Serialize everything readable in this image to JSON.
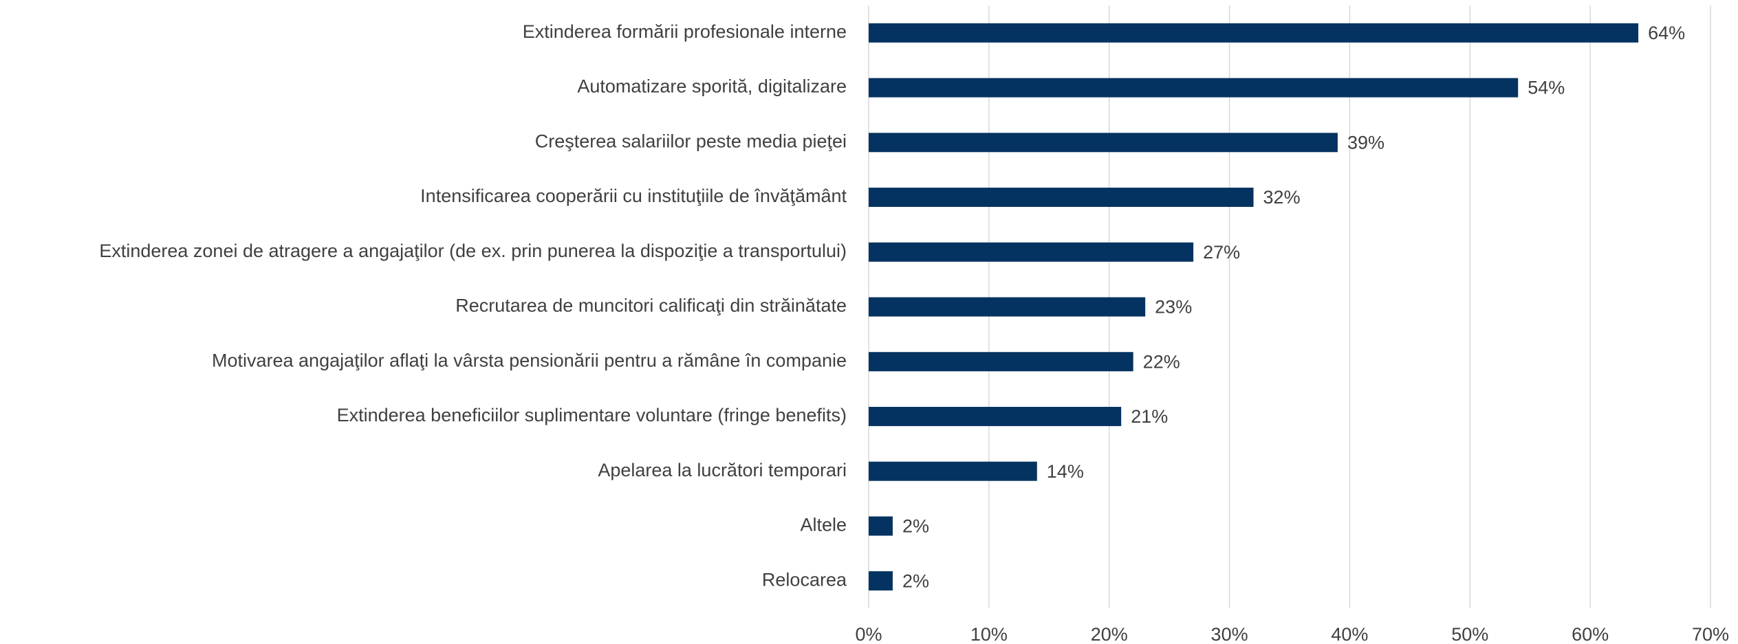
{
  "chart_data": {
    "type": "bar",
    "orientation": "horizontal",
    "categories": [
      "Extinderea formării profesionale interne",
      "Automatizare sporită, digitalizare",
      "Creşterea salariilor peste media pieţei",
      "Intensificarea cooperării cu instituţiile de învăţământ",
      "Extinderea zonei de atragere a angajaţilor (de ex. prin punerea la dispoziţie a transportului)",
      "Recrutarea de muncitori calificaţi din străinătate",
      "Motivarea angajaţilor aflaţi la vârsta pensionării pentru a rămâne în companie",
      "Extinderea beneficiilor suplimentare voluntare (fringe benefits)",
      "Apelarea la lucrători temporari",
      "Altele",
      "Relocarea"
    ],
    "values": [
      64,
      54,
      39,
      32,
      27,
      23,
      22,
      21,
      14,
      2,
      2
    ],
    "value_labels": [
      "64%",
      "54%",
      "39%",
      "32%",
      "27%",
      "23%",
      "22%",
      "21%",
      "14%",
      "2%",
      "2%"
    ],
    "color": "#053361",
    "xlim": [
      0,
      70
    ],
    "xticks": [
      {
        "value": 0,
        "label": "0%"
      },
      {
        "value": 10,
        "label": "10%"
      },
      {
        "value": 20,
        "label": "20%"
      },
      {
        "value": 30,
        "label": "30%"
      },
      {
        "value": 40,
        "label": "40%"
      },
      {
        "value": 50,
        "label": "50%"
      },
      {
        "value": 60,
        "label": "60%"
      },
      {
        "value": 70,
        "label": "70%"
      }
    ],
    "grid": true
  }
}
